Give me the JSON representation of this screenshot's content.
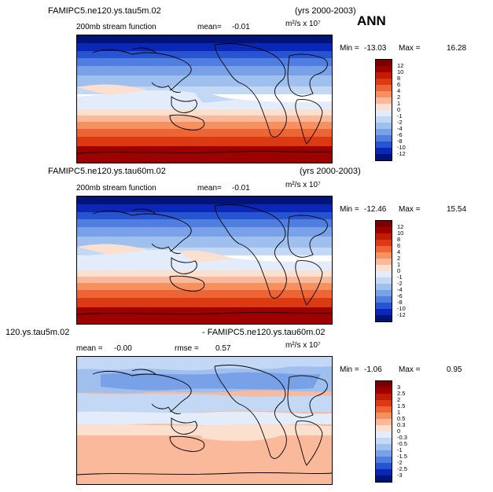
{
  "season": "ANN",
  "panels": [
    {
      "case": "FAMIPC5.ne120.ys.tau5m.02",
      "years": "(yrs 2000-2003)",
      "field": "200mb stream function",
      "mean_label": "mean=",
      "mean": "-0.01",
      "units": "m²/s x 10⁷",
      "min_label": "Min =",
      "min": "-13.03",
      "max_label": "Max =",
      "max": "16.28",
      "levels": [
        "12",
        "10",
        "8",
        "6",
        "4",
        "2",
        "1",
        "0",
        "-1",
        "-2",
        "-4",
        "-6",
        "-8",
        "-10",
        "-12"
      ]
    },
    {
      "case": "FAMIPC5.ne120.ys.tau60m.02",
      "years": "(yrs 2000-2003)",
      "field": "200mb stream function",
      "mean_label": "mean=",
      "mean": "-0.01",
      "units": "m²/s x 10⁷",
      "min_label": "Min =",
      "min": "-12.46",
      "max_label": "Max =",
      "max": "15.54",
      "levels": [
        "12",
        "10",
        "8",
        "6",
        "4",
        "2",
        "1",
        "0",
        "-1",
        "-2",
        "-4",
        "-6",
        "-8",
        "-10",
        "-12"
      ]
    },
    {
      "case_left": "120.ys.tau5m.02",
      "case_right": "- FAMIPC5.ne120.ys.tau60m.02",
      "mean_label": "mean =",
      "mean": "-0.00",
      "rmse_label": "rmse =",
      "rmse": "0.57",
      "units": "m²/s x 10⁷",
      "min_label": "Min =",
      "min": "-1.06",
      "max_label": "Max =",
      "max": "0.95",
      "levels": [
        "3",
        "2.5",
        "2",
        "1.5",
        "1",
        "0.5",
        "0.3",
        "0",
        "-0.3",
        "-0.5",
        "-1",
        "-1.5",
        "-2",
        "-2.5",
        "-3"
      ]
    }
  ],
  "colors": {
    "abs_scale": [
      "#7a0000",
      "#9e0000",
      "#c21c00",
      "#dc3a12",
      "#ee6535",
      "#f6905f",
      "#fab99a",
      "#fce0cf",
      "#e2ecfb",
      "#c3d8f5",
      "#9fc0ee",
      "#78a1e8",
      "#4f7ee0",
      "#2755d2",
      "#0b27b8",
      "#001478"
    ],
    "diff_scale": [
      "#7a0000",
      "#9e0000",
      "#c21c00",
      "#dc3a12",
      "#ee6535",
      "#f6905f",
      "#fab99a",
      "#fce0cf",
      "#e2ecfb",
      "#c3d8f5",
      "#9fc0ee",
      "#78a1e8",
      "#4f7ee0",
      "#2755d2",
      "#0b27b8",
      "#001478"
    ]
  }
}
